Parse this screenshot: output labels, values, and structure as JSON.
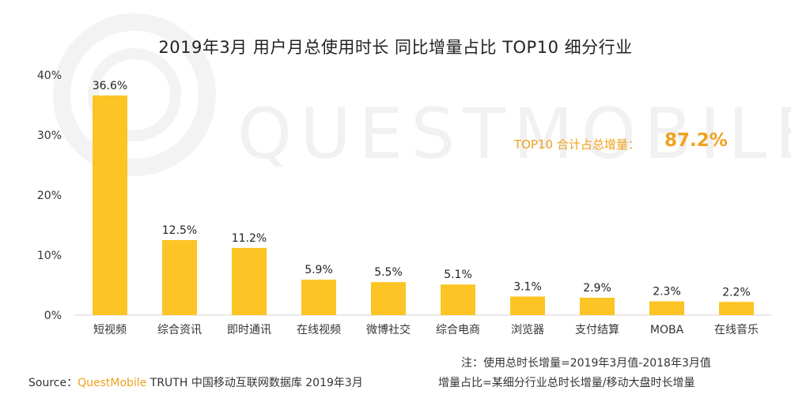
{
  "chart_data": {
    "type": "bar",
    "title": "2019年3月 用户月总使用时长 同比增量占比 TOP10 细分行业",
    "categories": [
      "短视频",
      "综合资讯",
      "即时通讯",
      "在线视频",
      "微博社交",
      "综合电商",
      "浏览器",
      "支付结算",
      "MOBA",
      "在线音乐"
    ],
    "values": [
      36.6,
      12.5,
      11.2,
      5.9,
      5.5,
      5.1,
      3.1,
      2.9,
      2.3,
      2.2
    ],
    "value_labels": [
      "36.6%",
      "12.5%",
      "11.2%",
      "5.9%",
      "5.5%",
      "5.1%",
      "3.1%",
      "2.9%",
      "2.3%",
      "2.2%"
    ],
    "yticks": [
      0,
      10,
      20,
      30,
      40
    ],
    "ytick_labels": [
      "0%",
      "10%",
      "20%",
      "30%",
      "40%"
    ],
    "ylim": [
      0,
      40
    ],
    "xlabel": "",
    "ylabel": "",
    "grid": false,
    "bar_color": "#fcc424"
  },
  "annotation": {
    "label": "TOP10 合计占总增量：",
    "value": "87.2%",
    "color": "#f0a11e"
  },
  "watermark": "QUESTMOBILE",
  "footer": {
    "source_prefix": "Source：",
    "source_brand": "QuestMobile",
    "source_rest": " TRUTH 中国移动互联网数据库 2019年3月",
    "note1": "注：使用总时长增量=2019年3月值-2018年3月值",
    "note2": "增量占比=某细分行业总时长增量/移动大盘时长增量"
  }
}
